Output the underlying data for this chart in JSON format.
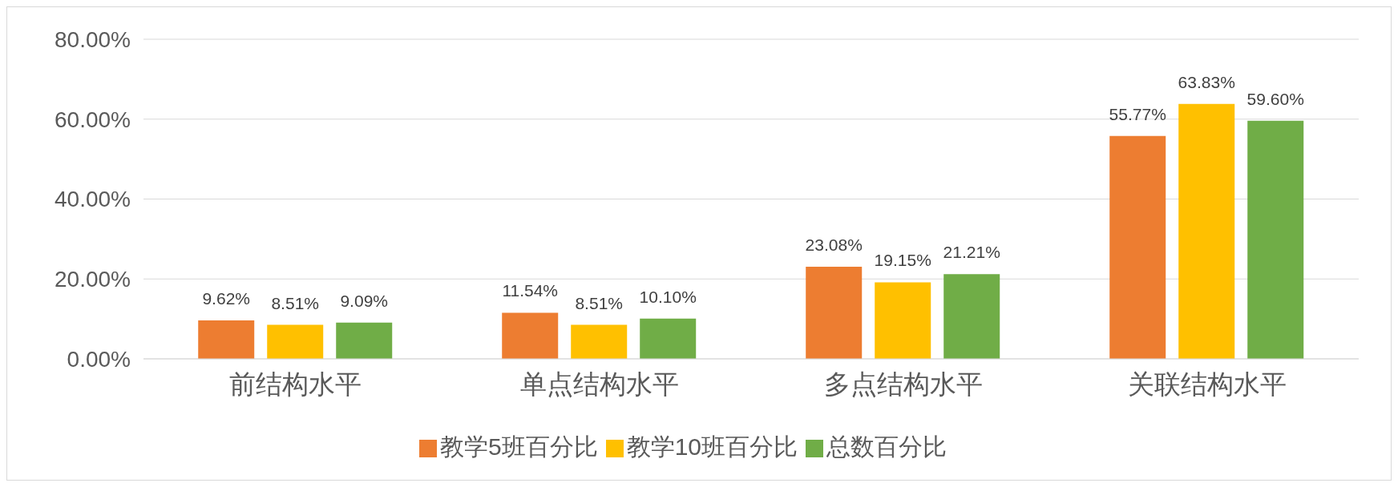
{
  "chart_data": {
    "type": "bar",
    "categories": [
      "前结构水平",
      "单点结构水平",
      "多点结构水平",
      "关联结构水平"
    ],
    "series": [
      {
        "name": "教学5班百分比",
        "color": "#ed7d31",
        "values": [
          9.62,
          11.54,
          23.08,
          55.77
        ],
        "value_labels": [
          "9.62%",
          "11.54%",
          "23.08%",
          "55.77%"
        ]
      },
      {
        "name": "教学10班百分比",
        "color": "#ffc000",
        "values": [
          8.51,
          8.51,
          19.15,
          63.83
        ],
        "value_labels": [
          "8.51%",
          "8.51%",
          "19.15%",
          "63.83%"
        ]
      },
      {
        "name": "总数百分比",
        "color": "#70ad47",
        "values": [
          9.09,
          10.1,
          21.21,
          59.6
        ],
        "value_labels": [
          "9.09%",
          "10.10%",
          "21.21%",
          "59.60%"
        ]
      }
    ],
    "ylim": [
      0,
      80
    ],
    "yticks": [
      {
        "value": 0,
        "label": "0.00%"
      },
      {
        "value": 20,
        "label": "20.00%"
      },
      {
        "value": 40,
        "label": "40.00%"
      },
      {
        "value": 60,
        "label": "60.00%"
      },
      {
        "value": 80,
        "label": "80.00%"
      }
    ],
    "grid": "y",
    "legend": "bottom"
  }
}
